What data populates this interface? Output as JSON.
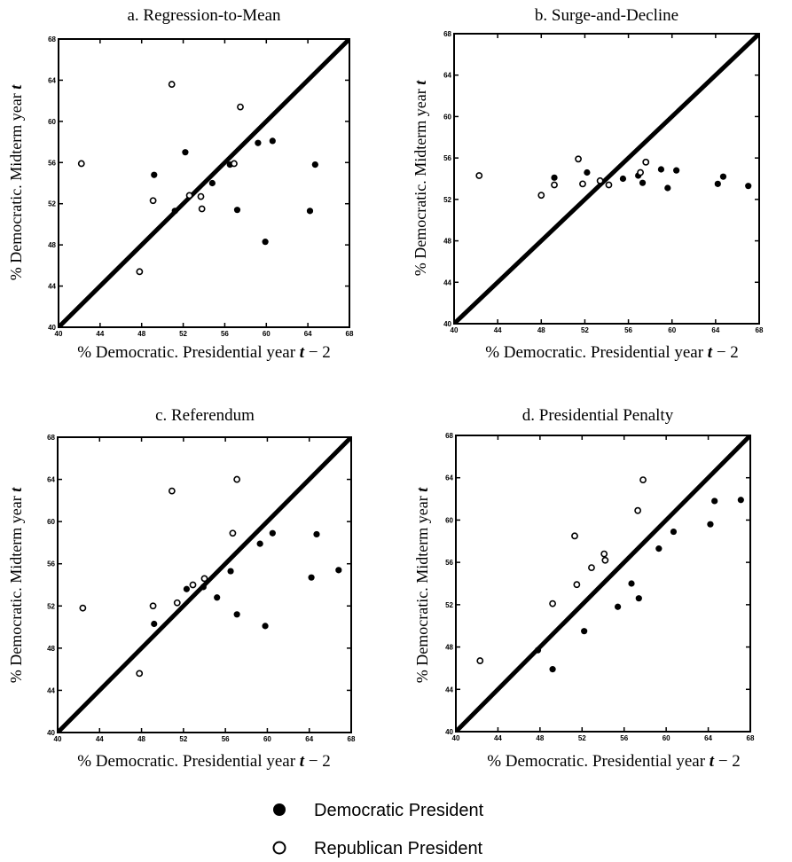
{
  "legend": {
    "democratic": "Democratic President",
    "republican": "Republican President"
  },
  "chart_data": [
    {
      "type": "scatter",
      "title": "a. Regression-to-Mean",
      "xlabel_prefix": "% Democratic. Presidential year ",
      "xlabel_var": "t",
      "xlabel_suffix": " − 2",
      "ylabel_prefix": "% Democratic. Midterm year ",
      "ylabel_var": "t",
      "xlim": [
        40,
        68
      ],
      "ylim": [
        40,
        68
      ],
      "xticks": [
        "40",
        "44",
        "48",
        "52",
        "56",
        "60",
        "64",
        "68"
      ],
      "yticks": [
        "40",
        "44",
        "48",
        "52",
        "56",
        "60",
        "64",
        "68"
      ],
      "reference_line": [
        [
          40,
          40
        ],
        [
          68,
          68
        ]
      ],
      "series": [
        {
          "name": "Democratic President",
          "filled": true,
          "points": [
            [
              49.2,
              54.8
            ],
            [
              51.2,
              51.3
            ],
            [
              52.2,
              57.0
            ],
            [
              54.8,
              54.0
            ],
            [
              56.5,
              55.8
            ],
            [
              57.2,
              51.4
            ],
            [
              59.2,
              57.9
            ],
            [
              60.6,
              58.1
            ],
            [
              64.2,
              51.3
            ],
            [
              64.7,
              55.8
            ],
            [
              59.9,
              48.3
            ]
          ]
        },
        {
          "name": "Republican President",
          "filled": false,
          "points": [
            [
              42.2,
              55.9
            ],
            [
              47.8,
              45.4
            ],
            [
              49.1,
              52.3
            ],
            [
              50.9,
              63.6
            ],
            [
              52.6,
              52.8
            ],
            [
              53.7,
              52.7
            ],
            [
              53.8,
              51.5
            ],
            [
              56.9,
              55.9
            ],
            [
              57.5,
              61.4
            ]
          ]
        }
      ]
    },
    {
      "type": "scatter",
      "title": "b. Surge-and-Decline",
      "xlabel_prefix": "% Democratic. Presidential year ",
      "xlabel_var": "t",
      "xlabel_suffix": " − 2",
      "ylabel_prefix": "% Democratic. Midterm year ",
      "ylabel_var": "t",
      "xlim": [
        40,
        68
      ],
      "ylim": [
        40,
        68
      ],
      "xticks": [
        "40",
        "44",
        "48",
        "52",
        "56",
        "60",
        "64",
        "68"
      ],
      "yticks": [
        "40",
        "44",
        "48",
        "52",
        "56",
        "60",
        "64",
        "68"
      ],
      "reference_line": [
        [
          40,
          40
        ],
        [
          68,
          68
        ]
      ],
      "series": [
        {
          "name": "Democratic President",
          "filled": true,
          "points": [
            [
              49.2,
              54.1
            ],
            [
              52.2,
              54.6
            ],
            [
              55.5,
              54.0
            ],
            [
              56.9,
              54.3
            ],
            [
              57.3,
              53.6
            ],
            [
              59.0,
              54.9
            ],
            [
              59.6,
              53.1
            ],
            [
              60.4,
              54.8
            ],
            [
              64.2,
              53.5
            ],
            [
              64.7,
              54.2
            ],
            [
              67.0,
              53.3
            ]
          ]
        },
        {
          "name": "Republican President",
          "filled": false,
          "points": [
            [
              42.3,
              54.3
            ],
            [
              48.0,
              52.4
            ],
            [
              49.2,
              53.4
            ],
            [
              51.4,
              55.9
            ],
            [
              51.8,
              53.5
            ],
            [
              53.4,
              53.8
            ],
            [
              54.2,
              53.4
            ],
            [
              57.1,
              54.6
            ],
            [
              57.6,
              55.6
            ]
          ]
        }
      ]
    },
    {
      "type": "scatter",
      "title": "c. Referendum",
      "xlabel_prefix": "% Democratic. Presidential year ",
      "xlabel_var": "t",
      "xlabel_suffix": " − 2",
      "ylabel_prefix": "% Democratic. Midterm year ",
      "ylabel_var": "t",
      "xlim": [
        40,
        68
      ],
      "ylim": [
        40,
        68
      ],
      "xticks": [
        "40",
        "44",
        "48",
        "52",
        "56",
        "60",
        "64",
        "68"
      ],
      "yticks": [
        "40",
        "44",
        "48",
        "52",
        "56",
        "60",
        "64",
        "68"
      ],
      "reference_line": [
        [
          40,
          40
        ],
        [
          68,
          68
        ]
      ],
      "series": [
        {
          "name": "Democratic President",
          "filled": true,
          "points": [
            [
              49.2,
              50.3
            ],
            [
              52.3,
              53.6
            ],
            [
              53.9,
              53.8
            ],
            [
              55.2,
              52.8
            ],
            [
              56.5,
              55.3
            ],
            [
              57.1,
              51.2
            ],
            [
              59.3,
              57.9
            ],
            [
              60.5,
              58.9
            ],
            [
              64.2,
              54.7
            ],
            [
              64.7,
              58.8
            ],
            [
              59.8,
              50.1
            ],
            [
              66.8,
              55.4
            ]
          ]
        },
        {
          "name": "Republican President",
          "filled": false,
          "points": [
            [
              42.4,
              51.8
            ],
            [
              47.8,
              45.6
            ],
            [
              49.1,
              52.0
            ],
            [
              50.9,
              62.9
            ],
            [
              51.4,
              52.3
            ],
            [
              52.9,
              54.0
            ],
            [
              54.0,
              54.6
            ],
            [
              56.7,
              58.9
            ],
            [
              57.1,
              64.0
            ]
          ]
        }
      ]
    },
    {
      "type": "scatter",
      "title": "d. Presidential Penalty",
      "xlabel_prefix": "% Democratic. Presidential year ",
      "xlabel_var": "t",
      "xlabel_suffix": " − 2",
      "ylabel_prefix": "% Democratic. Midterm year ",
      "ylabel_var": "t",
      "xlim": [
        40,
        68
      ],
      "ylim": [
        40,
        68
      ],
      "xticks": [
        "40",
        "44",
        "48",
        "52",
        "56",
        "60",
        "64",
        "68"
      ],
      "yticks": [
        "40",
        "44",
        "48",
        "52",
        "56",
        "60",
        "64",
        "68"
      ],
      "reference_line": [
        [
          40,
          40
        ],
        [
          68,
          68
        ]
      ],
      "series": [
        {
          "name": "Democratic President",
          "filled": true,
          "points": [
            [
              47.8,
              47.7
            ],
            [
              49.2,
              45.9
            ],
            [
              52.2,
              49.5
            ],
            [
              55.4,
              51.8
            ],
            [
              56.7,
              54.0
            ],
            [
              57.4,
              52.6
            ],
            [
              59.3,
              57.3
            ],
            [
              60.7,
              58.9
            ],
            [
              64.2,
              59.6
            ],
            [
              64.6,
              61.8
            ],
            [
              67.1,
              61.9
            ]
          ]
        },
        {
          "name": "Republican President",
          "filled": false,
          "points": [
            [
              42.3,
              46.7
            ],
            [
              49.2,
              52.1
            ],
            [
              51.3,
              58.5
            ],
            [
              51.5,
              53.9
            ],
            [
              52.9,
              55.5
            ],
            [
              54.1,
              56.8
            ],
            [
              54.2,
              56.2
            ],
            [
              57.3,
              60.9
            ],
            [
              57.8,
              63.8
            ]
          ]
        }
      ]
    }
  ]
}
